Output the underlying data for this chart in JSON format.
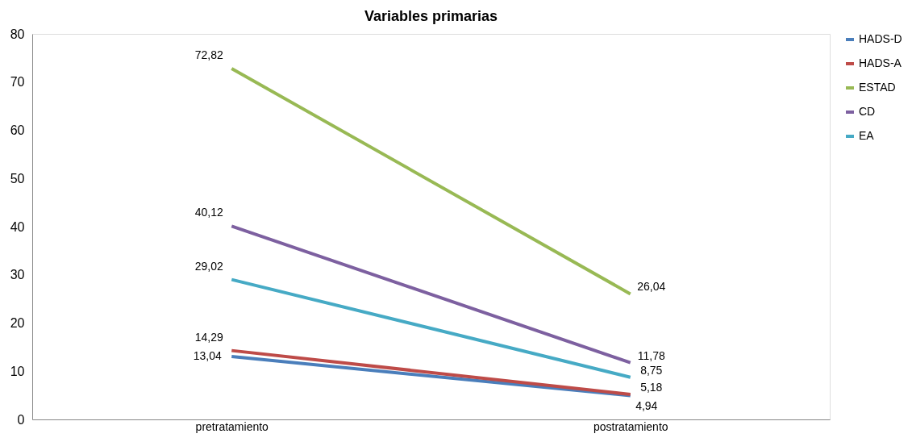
{
  "chart_data": {
    "type": "line",
    "title": "Variables primarias",
    "categories": [
      "pretratamiento",
      "postratamiento"
    ],
    "series": [
      {
        "name": "HADS-D",
        "color": "#4a7ebb",
        "values": [
          13.04,
          4.94
        ],
        "value_labels": [
          "13,04",
          "4,94"
        ]
      },
      {
        "name": "HADS-A",
        "color": "#be4b48",
        "values": [
          14.29,
          5.18
        ],
        "value_labels": [
          "14,29",
          "5,18"
        ]
      },
      {
        "name": "ESTAD",
        "color": "#98b954",
        "values": [
          72.82,
          26.04
        ],
        "value_labels": [
          "72,82",
          "26,04"
        ]
      },
      {
        "name": "CD",
        "color": "#7d60a0",
        "values": [
          40.12,
          11.78
        ],
        "value_labels": [
          "40,12",
          "11,78"
        ]
      },
      {
        "name": "EA",
        "color": "#46aac5",
        "values": [
          29.02,
          8.75
        ],
        "value_labels": [
          "29,02",
          "8,75"
        ]
      }
    ],
    "ylim": [
      0,
      80
    ],
    "yticks": [
      0,
      10,
      20,
      30,
      40,
      50,
      60,
      70,
      80
    ],
    "grid": false,
    "legend": "right",
    "marker": "none",
    "line_style": "solid"
  }
}
